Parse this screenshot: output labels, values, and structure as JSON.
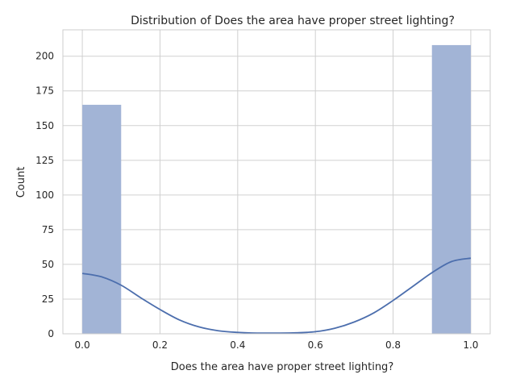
{
  "chart_data": {
    "type": "histogram",
    "title": "Distribution of Does the area have proper street lighting?",
    "xlabel": "Does the area have proper street lighting?",
    "ylabel": "Count",
    "xlim": [
      -0.05,
      1.05
    ],
    "ylim": [
      0,
      219
    ],
    "xticks": [
      0.0,
      0.2,
      0.4,
      0.6,
      0.8,
      1.0
    ],
    "xtick_labels": [
      "0.0",
      "0.2",
      "0.4",
      "0.6",
      "0.8",
      "1.0"
    ],
    "yticks": [
      0,
      25,
      50,
      75,
      100,
      125,
      150,
      175,
      200
    ],
    "ytick_labels": [
      "0",
      "25",
      "50",
      "75",
      "100",
      "125",
      "150",
      "175",
      "200"
    ],
    "grid": true,
    "bars": [
      {
        "x0": 0.0,
        "x1": 0.1,
        "count": 165
      },
      {
        "x0": 0.9,
        "x1": 1.0,
        "count": 208
      }
    ],
    "kde": {
      "x": [
        0.0,
        0.05,
        0.1,
        0.15,
        0.2,
        0.25,
        0.3,
        0.35,
        0.4,
        0.45,
        0.5,
        0.55,
        0.6,
        0.65,
        0.7,
        0.75,
        0.8,
        0.85,
        0.9,
        0.95,
        1.0
      ],
      "y": [
        43.5,
        41,
        35,
        26,
        17.5,
        10,
        5,
        2.2,
        1,
        0.5,
        0.5,
        0.7,
        1.5,
        4,
        8.5,
        15,
        24,
        34,
        44,
        52,
        54.5
      ]
    },
    "colors": {
      "bar": "#a2b4d6",
      "kde": "#4c6ead",
      "grid": "#d0d0d0"
    }
  }
}
